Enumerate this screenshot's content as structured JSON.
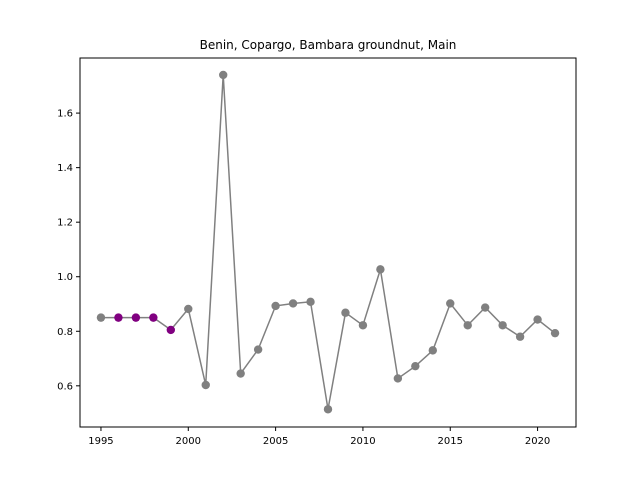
{
  "chart_data": {
    "type": "line",
    "title": "Benin, Copargo, Bambara groundnut, Main",
    "xlabel": "",
    "ylabel": "",
    "xlim": [
      1993.8,
      2022.2
    ],
    "ylim": [
      0.449,
      1.802
    ],
    "x_ticks": [
      1995,
      2000,
      2005,
      2010,
      2015,
      2020
    ],
    "y_ticks": [
      0.6,
      0.8,
      1.0,
      1.2,
      1.4,
      1.6
    ],
    "y_tick_labels": [
      "0.6",
      "0.8",
      "1.0",
      "1.2",
      "1.4",
      "1.6"
    ],
    "grid": false,
    "line_color": "#808080",
    "point_color": "#808080",
    "highlight_color": "#800080",
    "series": [
      {
        "x": [
          1995,
          1996,
          1997,
          1998,
          1999,
          2000,
          2001,
          2002,
          2003,
          2004,
          2005,
          2006,
          2007,
          2008,
          2009,
          2010,
          2011,
          2012,
          2013,
          2014,
          2015,
          2016,
          2017,
          2018,
          2019,
          2020,
          2021
        ],
        "values": [
          0.85,
          0.85,
          0.85,
          0.85,
          0.805,
          0.882,
          0.603,
          1.74,
          0.645,
          0.733,
          0.893,
          0.902,
          0.908,
          0.514,
          0.868,
          0.822,
          1.027,
          0.627,
          0.672,
          0.73,
          0.902,
          0.822,
          0.887,
          0.822,
          0.78,
          0.843,
          0.793
        ],
        "highlighted_x": [
          1996,
          1997,
          1998,
          1999
        ]
      }
    ]
  }
}
